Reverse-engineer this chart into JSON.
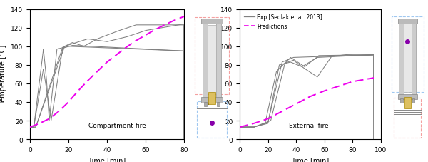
{
  "left_xlim": [
    0,
    80
  ],
  "left_ylim": [
    0,
    140
  ],
  "right_xlim": [
    0,
    100
  ],
  "right_ylim": [
    0,
    140
  ],
  "left_xticks": [
    0,
    20,
    40,
    60,
    80
  ],
  "left_yticks": [
    0,
    20,
    40,
    60,
    80,
    100,
    120,
    140
  ],
  "right_xticks": [
    0,
    20,
    40,
    60,
    80,
    100
  ],
  "right_yticks": [
    0,
    20,
    40,
    60,
    80,
    100,
    120,
    140
  ],
  "exp_color": "#808080",
  "pred_color": "#ee00ee",
  "xlabel": "Time [min]",
  "ylabel": "Temperature [°C]",
  "left_label": "Compartment fire",
  "right_label": "External fire",
  "legend_exp": "Exp [Sedlak et al. 2013]",
  "legend_pred": "Predictions",
  "comp_pred_t": [
    0,
    5,
    10,
    15,
    20,
    25,
    30,
    35,
    40,
    45,
    50,
    55,
    60,
    65,
    70,
    75,
    80
  ],
  "comp_pred_y": [
    13,
    17,
    22,
    30,
    40,
    52,
    63,
    73,
    83,
    91,
    99,
    106,
    112,
    118,
    123,
    128,
    132
  ],
  "ext_pred_t": [
    0,
    10,
    20,
    30,
    40,
    50,
    60,
    70,
    80,
    95
  ],
  "ext_pred_y": [
    13,
    17,
    22,
    30,
    38,
    46,
    52,
    57,
    62,
    66
  ]
}
